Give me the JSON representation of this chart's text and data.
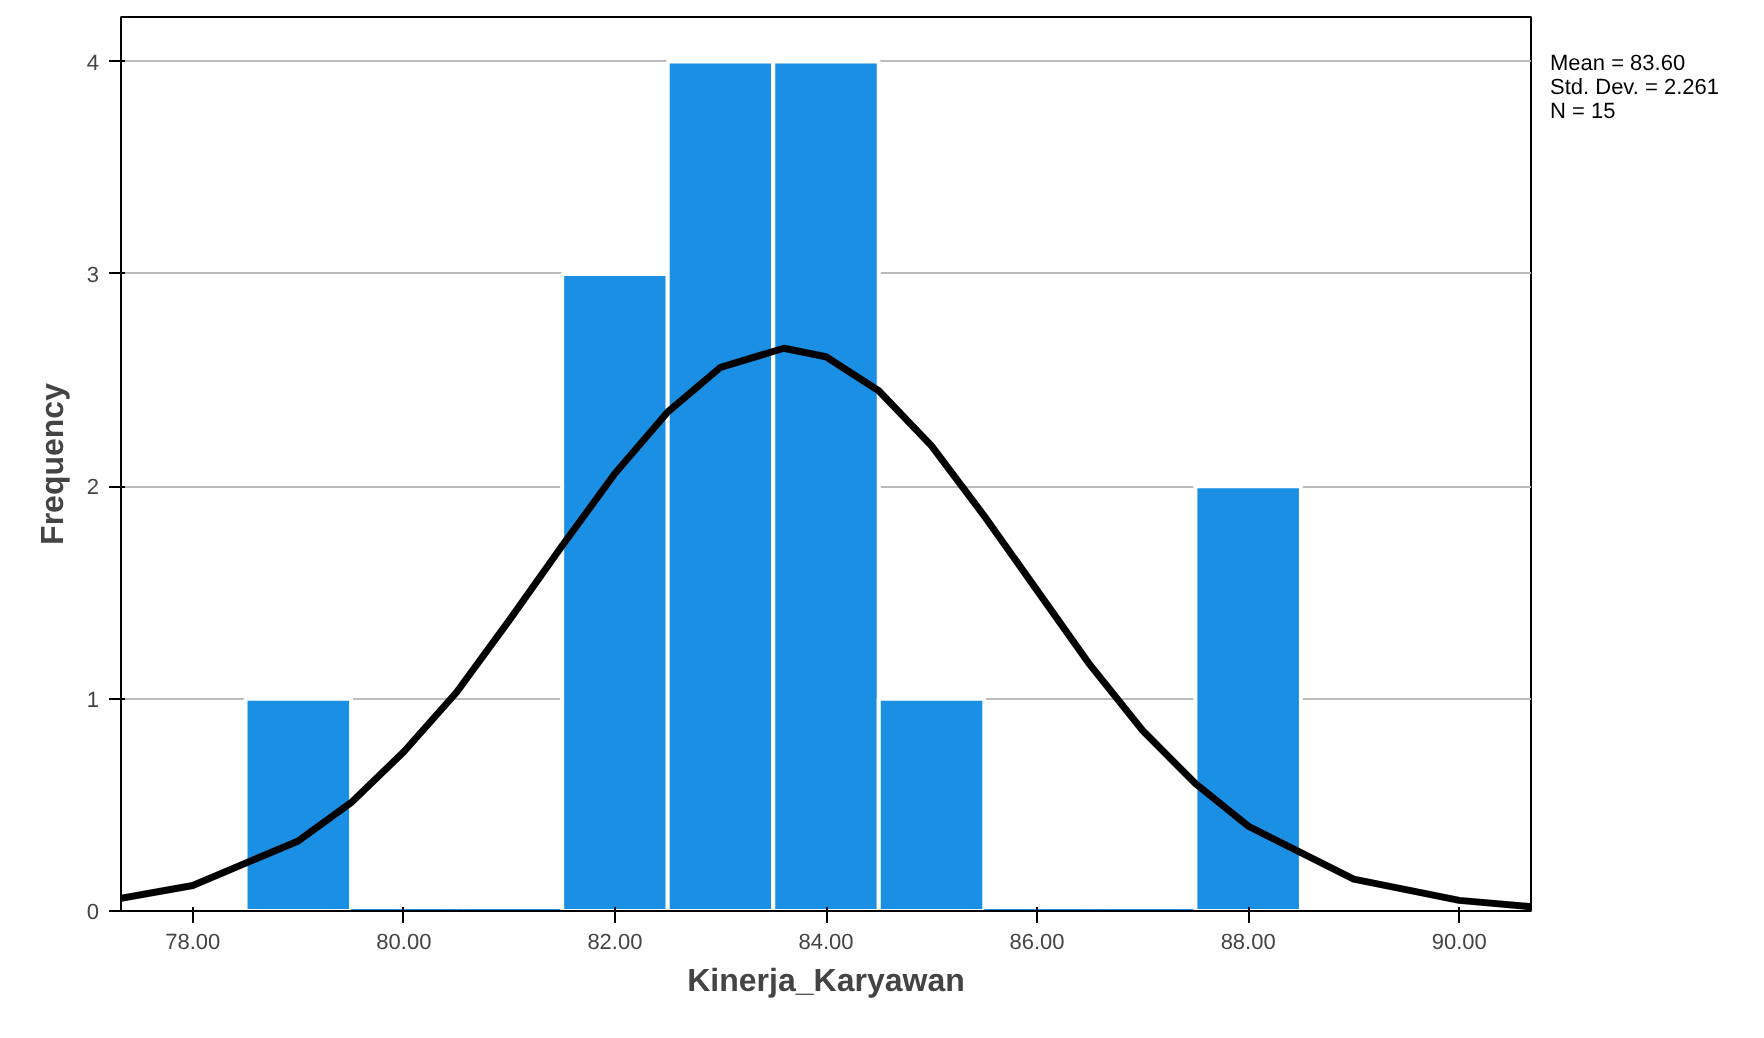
{
  "chart_data": {
    "type": "histogram",
    "xlabel": "Kinerja_Karyawan",
    "ylabel": "Frequency",
    "bins": [
      78.5,
      79.5,
      80.5,
      81.5,
      82.5,
      83.5,
      84.5,
      85.5,
      86.5,
      87.5,
      88.5
    ],
    "values": [
      1,
      0,
      0,
      3,
      4,
      4,
      1,
      0,
      0,
      2
    ],
    "color": "#1a8fe3",
    "series": [
      {
        "type": "line",
        "color": "#000000",
        "x": [
          77.32,
          78,
          79,
          79.5,
          80,
          80.5,
          81,
          81.5,
          82,
          82.5,
          83,
          83.6,
          84,
          84.5,
          85,
          85.5,
          86,
          86.5,
          87,
          87.5,
          88,
          89,
          90,
          90.68
        ],
        "values": [
          0.06,
          0.12,
          0.33,
          0.51,
          0.75,
          1.03,
          1.37,
          1.72,
          2.06,
          2.35,
          2.56,
          2.65,
          2.61,
          2.45,
          2.19,
          1.86,
          1.51,
          1.16,
          0.85,
          0.6,
          0.4,
          0.15,
          0.05,
          0.02
        ]
      }
    ],
    "xlim": [
      77.32,
      90.68
    ],
    "ylim": [
      0,
      4.21
    ],
    "xticks": [
      {
        "value": 78,
        "label": "78.00"
      },
      {
        "value": 80,
        "label": "80.00"
      },
      {
        "value": 82,
        "label": "82.00"
      },
      {
        "value": 84,
        "label": "84.00"
      },
      {
        "value": 86,
        "label": "86.00"
      },
      {
        "value": 88,
        "label": "88.00"
      },
      {
        "value": 90,
        "label": "90.00"
      }
    ],
    "yticks": [
      0,
      1,
      2,
      3,
      4
    ],
    "grid": "y",
    "annotations": [
      "Mean = 83.60",
      "Std. Dev. = 2.261",
      "N = 15"
    ]
  }
}
